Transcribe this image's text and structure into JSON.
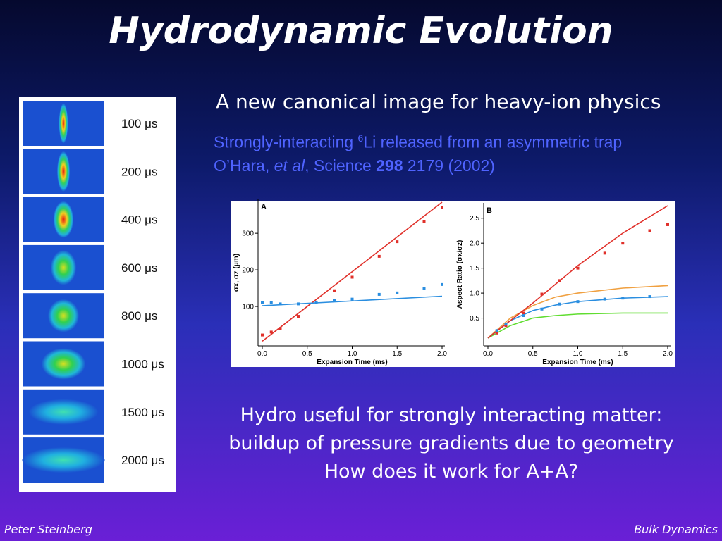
{
  "title": "Hydrodynamic Evolution",
  "subtitle": "A new canonical image for heavy-ion physics",
  "caption": {
    "before": "Strongly-interacting ",
    "superscript": "6",
    "after": "Li released from an asymmetric trap"
  },
  "citation": {
    "authors": "O’Hara, ",
    "et_al": "et al",
    "journal": ", Science ",
    "volume": "298",
    "rest": " 2179 (2002)"
  },
  "image_strip": {
    "labels": [
      "100 μs",
      "200 μs",
      "400 μs",
      "600 μs",
      "800 μs",
      "1000 μs",
      "1500 μs",
      "2000 μs"
    ]
  },
  "chart_data": [
    {
      "type": "scatter",
      "panel_label": "A",
      "x_label": "Expansion Time (ms)",
      "y_label": "σx, σz (μm)",
      "xlim": [
        0,
        2
      ],
      "xticks": [
        {
          "value": 0,
          "label": "0.0"
        },
        0.5,
        {
          "value": 1,
          "label": "1.0"
        },
        1.5,
        {
          "value": 2,
          "label": "2.0"
        }
      ],
      "ylim": [
        0,
        385
      ],
      "yticks": [
        100,
        200,
        300
      ],
      "series": [
        {
          "mode": "points",
          "color": "#e0302a",
          "x": [
            0.0,
            0.1,
            0.2,
            0.4,
            0.6,
            0.8,
            1.0,
            1.3,
            1.5,
            1.8,
            2.0
          ],
          "values": [
            22,
            30,
            40,
            73,
            110,
            143,
            180,
            237,
            277,
            333,
            370
          ]
        },
        {
          "mode": "points",
          "color": "#2a8ee0",
          "x": [
            0.0,
            0.1,
            0.2,
            0.4,
            0.6,
            0.8,
            1.0,
            1.3,
            1.5,
            1.8,
            2.0
          ],
          "values": [
            110,
            110,
            107,
            107,
            110,
            117,
            120,
            133,
            137,
            150,
            160
          ]
        },
        {
          "mode": "line",
          "color": "#e0302a",
          "x": [
            0,
            2
          ],
          "values": [
            5,
            385
          ]
        },
        {
          "mode": "line",
          "color": "#2a8ee0",
          "x": [
            0,
            2
          ],
          "values": [
            102,
            128
          ]
        }
      ]
    },
    {
      "type": "scatter",
      "panel_label": "B",
      "x_label": "Expansion Time (ms)",
      "y_label": "Aspect Ratio (σx/σz)",
      "xlim": [
        0,
        2
      ],
      "xticks": [
        {
          "value": 0,
          "label": "0.0"
        },
        0.5,
        {
          "value": 1,
          "label": "1.0"
        },
        1.5,
        {
          "value": 2,
          "label": "2.0"
        }
      ],
      "ylim": [
        0,
        2.75
      ],
      "yticks": [
        0.5,
        {
          "value": 1,
          "label": "1.0"
        },
        1.5,
        {
          "value": 2,
          "label": "2.0"
        },
        2.5
      ],
      "series": [
        {
          "mode": "line",
          "color": "#f0a040",
          "x": [
            0,
            0.25,
            0.5,
            0.75,
            1,
            1.5,
            2
          ],
          "values": [
            0.1,
            0.5,
            0.75,
            0.92,
            1.0,
            1.1,
            1.15
          ]
        },
        {
          "mode": "line",
          "color": "#60dd30",
          "x": [
            0,
            0.25,
            0.5,
            0.75,
            1,
            1.5,
            2
          ],
          "values": [
            0.1,
            0.35,
            0.5,
            0.55,
            0.58,
            0.6,
            0.6
          ]
        },
        {
          "mode": "line",
          "color": "#2a8ee0",
          "x": [
            0,
            0.25,
            0.5,
            0.75,
            1,
            1.5,
            2
          ],
          "values": [
            0.1,
            0.45,
            0.65,
            0.76,
            0.83,
            0.9,
            0.93
          ]
        },
        {
          "mode": "line",
          "color": "#e0302a",
          "x": [
            0,
            0.5,
            1,
            1.5,
            2
          ],
          "values": [
            0.1,
            0.8,
            1.55,
            2.2,
            2.75
          ]
        },
        {
          "mode": "points",
          "color": "#e0302a",
          "x": [
            0.1,
            0.2,
            0.4,
            0.6,
            0.8,
            1.0,
            1.3,
            1.5,
            1.8,
            2.0
          ],
          "values": [
            0.2,
            0.35,
            0.6,
            0.98,
            1.25,
            1.5,
            1.8,
            2.0,
            2.25,
            2.37
          ]
        },
        {
          "mode": "points",
          "color": "#2a8ee0",
          "x": [
            0.1,
            0.2,
            0.4,
            0.6,
            0.8,
            1.0,
            1.3,
            1.5,
            1.8
          ],
          "values": [
            0.25,
            0.38,
            0.55,
            0.68,
            0.78,
            0.83,
            0.88,
            0.9,
            0.93
          ]
        }
      ]
    }
  ],
  "body": {
    "lines": [
      "Hydro useful for strongly interacting matter:",
      "buildup of pressure gradients due to geometry",
      "How does it work for A+A?"
    ]
  },
  "footer": {
    "left": "Peter Steinberg",
    "right": "Bulk Dynamics"
  }
}
